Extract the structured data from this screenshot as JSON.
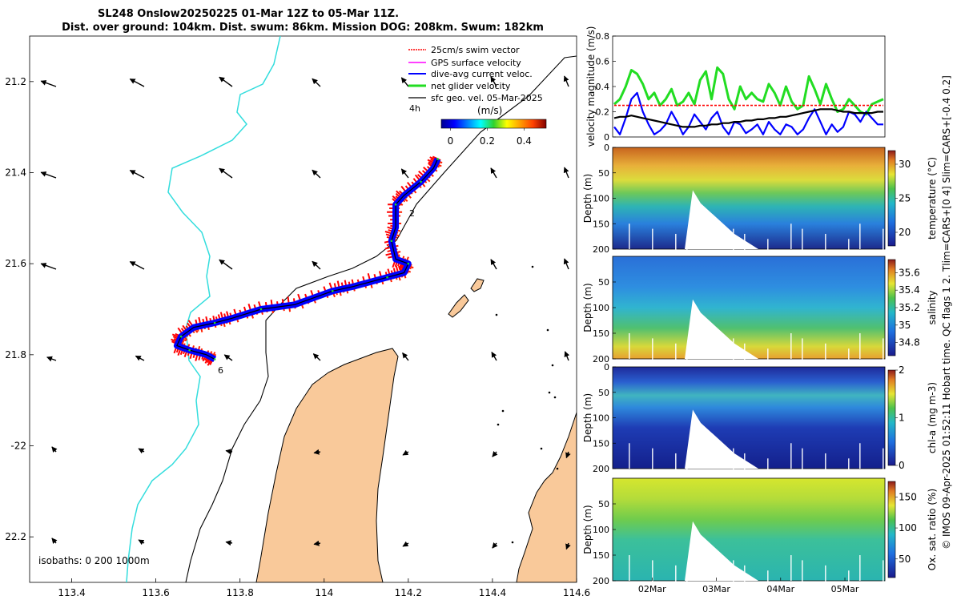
{
  "title": {
    "line1": "SL248 Onslow20250225 01-Mar 12Z to 05-Mar 11Z.",
    "line2": "Dist. over ground: 104km. Dist. swum: 86km. Mission DOG: 208km. Swum: 182km"
  },
  "colors": {
    "swim_vector": "#ff0000",
    "gps_velocity": "#ff00ff",
    "dive_avg": "#0000ff",
    "net_velocity": "#22dd22",
    "sfc_geo": "#000000",
    "coastline_fill": "#f9c99a",
    "isobath_cyan": "#33dddd"
  },
  "chart_data": [
    {
      "type": "map",
      "name": "track-map",
      "xlim": [
        113.3,
        114.6
      ],
      "ylim": [
        -22.3,
        -21.1
      ],
      "xticks": [
        113.4,
        113.6,
        113.8,
        114,
        114.2,
        114.4,
        114.6
      ],
      "xtick_labels": [
        "113.4",
        "113.6",
        "113.8",
        "114",
        "114.2",
        "114.4",
        "114.6"
      ],
      "yticks": [
        -21.2,
        -21.4,
        -21.6,
        -21.8,
        -22,
        -22.2
      ],
      "ytick_labels": [
        "21.2",
        "21.4",
        "21.6",
        "21.8",
        "-22",
        "22.2"
      ],
      "legend": [
        "25cm/s swim vector",
        "GPS surface velocity",
        "dive-avg current veloc.",
        "net glider velocity",
        "sfc geo. vel. 05-Mar-2025"
      ],
      "legend_scale_label": "4h",
      "colorbar": {
        "label": "(m/s)",
        "ticks": [
          "0",
          "0.2",
          "0.4"
        ],
        "range": [
          -0.05,
          0.52
        ]
      },
      "track_labels": [
        "2",
        "6"
      ],
      "isobath_label": "isobaths: 0   200  1000m",
      "track": [
        [
          114.27,
          -21.37
        ],
        [
          114.26,
          -21.39
        ],
        [
          114.23,
          -21.42
        ],
        [
          114.19,
          -21.45
        ],
        [
          114.17,
          -21.47
        ],
        [
          114.17,
          -21.52
        ],
        [
          114.16,
          -21.55
        ],
        [
          114.17,
          -21.59
        ],
        [
          114.2,
          -21.6
        ],
        [
          114.19,
          -21.62
        ],
        [
          114.15,
          -21.63
        ],
        [
          114.07,
          -21.65
        ],
        [
          114.02,
          -21.66
        ],
        [
          113.93,
          -21.69
        ],
        [
          113.85,
          -21.7
        ],
        [
          113.78,
          -21.72
        ],
        [
          113.74,
          -21.73
        ],
        [
          113.69,
          -21.74
        ],
        [
          113.66,
          -21.76
        ],
        [
          113.65,
          -21.78
        ],
        [
          113.68,
          -21.79
        ],
        [
          113.72,
          -21.8
        ],
        [
          113.74,
          -21.81
        ]
      ]
    },
    {
      "type": "line",
      "name": "velocity-magnitude",
      "ylabel": "velocity magnitude (m/s)",
      "ylim": [
        0,
        0.8
      ],
      "yticks": [
        "0",
        "0.2",
        "0.4",
        "0.6",
        "0.8"
      ],
      "xlim": [
        0,
        4
      ],
      "series": [
        {
          "name": "net glider velocity",
          "values": [
            0.26,
            0.3,
            0.4,
            0.53,
            0.5,
            0.42,
            0.3,
            0.35,
            0.25,
            0.3,
            0.38,
            0.25,
            0.28,
            0.35,
            0.26,
            0.45,
            0.52,
            0.3,
            0.55,
            0.5,
            0.3,
            0.22,
            0.4,
            0.3,
            0.35,
            0.3,
            0.28,
            0.42,
            0.35,
            0.25,
            0.4,
            0.28,
            0.22,
            0.25,
            0.48,
            0.38,
            0.26,
            0.42,
            0.3,
            0.2,
            0.22,
            0.3,
            0.25,
            0.2,
            0.18,
            0.26,
            0.28,
            0.3
          ]
        },
        {
          "name": "dive-avg current veloc.",
          "values": [
            0.08,
            0.02,
            0.15,
            0.3,
            0.35,
            0.2,
            0.1,
            0.02,
            0.05,
            0.1,
            0.2,
            0.12,
            0.02,
            0.08,
            0.18,
            0.12,
            0.06,
            0.15,
            0.2,
            0.08,
            0.02,
            0.12,
            0.1,
            0.03,
            0.06,
            0.1,
            0.02,
            0.12,
            0.06,
            0.02,
            0.1,
            0.08,
            0.02,
            0.06,
            0.15,
            0.22,
            0.12,
            0.02,
            0.1,
            0.04,
            0.08,
            0.2,
            0.18,
            0.12,
            0.2,
            0.15,
            0.1,
            0.1
          ]
        },
        {
          "name": "swim vector",
          "values": [
            0.25,
            0.25,
            0.25,
            0.25,
            0.25,
            0.25,
            0.25,
            0.25,
            0.25,
            0.25,
            0.25,
            0.25,
            0.25,
            0.25,
            0.25,
            0.25,
            0.25,
            0.25,
            0.25,
            0.25,
            0.25,
            0.25,
            0.25,
            0.25,
            0.25,
            0.25,
            0.25,
            0.25,
            0.25,
            0.25,
            0.25,
            0.25,
            0.25,
            0.25,
            0.25,
            0.25,
            0.25,
            0.25,
            0.25,
            0.25,
            0.25,
            0.25,
            0.25,
            0.25,
            0.25,
            0.25,
            0.25,
            0.25
          ]
        },
        {
          "name": "sfc geo. vel.",
          "values": [
            0.15,
            0.16,
            0.16,
            0.17,
            0.16,
            0.15,
            0.14,
            0.13,
            0.12,
            0.11,
            0.1,
            0.09,
            0.08,
            0.08,
            0.08,
            0.09,
            0.09,
            0.1,
            0.1,
            0.11,
            0.11,
            0.12,
            0.12,
            0.13,
            0.13,
            0.14,
            0.14,
            0.15,
            0.15,
            0.16,
            0.16,
            0.17,
            0.18,
            0.19,
            0.2,
            0.21,
            0.22,
            0.22,
            0.22,
            0.21,
            0.2,
            0.2,
            0.19,
            0.19,
            0.19,
            0.19,
            0.2,
            0.2
          ]
        }
      ]
    },
    {
      "type": "heatmap",
      "name": "temperature-section",
      "ylabel": "Depth (m)",
      "yticks": [
        "0",
        "50",
        "100",
        "150",
        "200"
      ],
      "colorbar_label": "temperature (°C)",
      "colorbar_ticks": [
        "20",
        "25",
        "30"
      ],
      "colorbar_range": [
        18,
        32
      ]
    },
    {
      "type": "heatmap",
      "name": "salinity-section",
      "ylabel": "Depth (m)",
      "yticks": [
        "50",
        "100",
        "150",
        "200"
      ],
      "colorbar_label": "salinity",
      "colorbar_ticks": [
        "34.8",
        "35",
        "35.2",
        "35.4",
        "35.6"
      ],
      "colorbar_range": [
        34.65,
        35.75
      ]
    },
    {
      "type": "heatmap",
      "name": "chlorophyll-section",
      "ylabel": "Depth (m)",
      "yticks": [
        "0",
        "50",
        "100",
        "150",
        "200"
      ],
      "colorbar_label": "chl-a (mg m-3)",
      "colorbar_ticks": [
        "0",
        "1",
        "2"
      ],
      "colorbar_range": [
        0,
        2
      ]
    },
    {
      "type": "heatmap",
      "name": "oxygen-section",
      "ylabel": "Depth (m)",
      "yticks": [
        "50",
        "100",
        "150",
        "200"
      ],
      "colorbar_label": "Ox. sat. ratio (%)",
      "colorbar_ticks": [
        "50",
        "100",
        "150"
      ],
      "colorbar_range": [
        20,
        175
      ],
      "xticks": [
        "02Mar",
        "03Mar",
        "04Mar",
        "05Mar"
      ]
    }
  ],
  "side_note": "© IMOS 09-Apr-2025 01:52:11 Hobart time. QC flags 1  2. Tlim=CARS+[0 4] Slim=CARS+[-0.4 0.2]"
}
